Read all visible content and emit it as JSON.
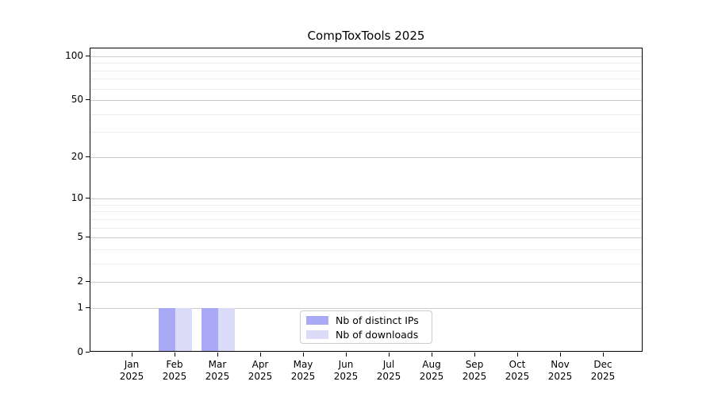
{
  "chart_data": {
    "type": "bar",
    "title": "CompToxTools 2025",
    "y_scale": "log1p",
    "ylim": [
      0,
      113
    ],
    "grid": "horizontal-major-and-minor",
    "categories": [
      "Jan",
      "Feb",
      "Mar",
      "Apr",
      "May",
      "Jun",
      "Jul",
      "Aug",
      "Sep",
      "Oct",
      "Nov",
      "Dec"
    ],
    "x_year_label": "2025",
    "series": [
      {
        "name": "Nb of distinct IPs",
        "color": "#a9a9f5",
        "values": [
          0,
          1,
          1,
          0,
          0,
          0,
          0,
          0,
          0,
          0,
          0,
          0
        ]
      },
      {
        "name": "Nb of downloads",
        "color": "#dcdcf9",
        "values": [
          0,
          1,
          1,
          0,
          0,
          0,
          0,
          0,
          0,
          0,
          0,
          0
        ]
      }
    ],
    "y_major_ticks": [
      0,
      1,
      2,
      5,
      10,
      20,
      50,
      100
    ],
    "y_minor_gridlines": [
      3,
      4,
      6,
      7,
      8,
      9,
      30,
      40,
      60,
      70,
      80,
      90
    ],
    "legend_position": "bottom-center-inside",
    "colors": {
      "major_grid": "#cccccc",
      "minor_grid": "#ececec",
      "spine": "#000000",
      "background": "#ffffff",
      "text": "#000000"
    }
  }
}
